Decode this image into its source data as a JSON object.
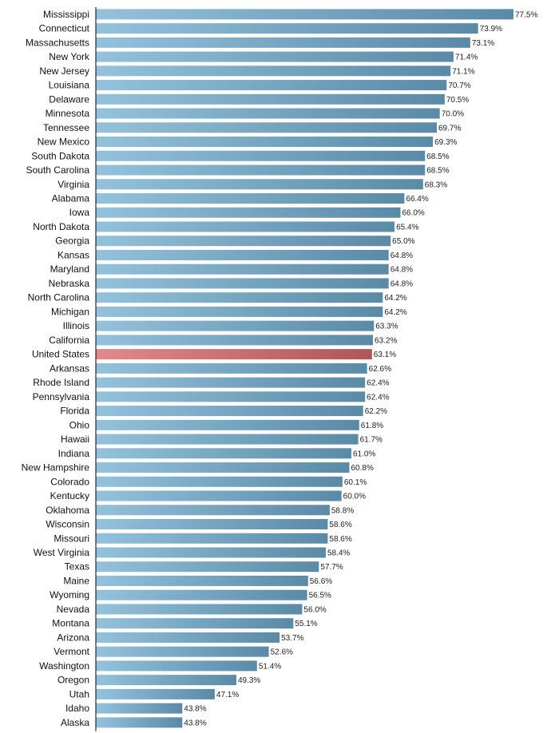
{
  "chart_data": {
    "type": "bar",
    "orientation": "horizontal",
    "categories": [
      "Mississippi",
      "Connecticut",
      "Massachusetts",
      "New York",
      "New Jersey",
      "Louisiana",
      "Delaware",
      "Minnesota",
      "Tennessee",
      "New Mexico",
      "South Dakota",
      "South Carolina",
      "Virginia",
      "Alabama",
      "Iowa",
      "North Dakota",
      "Georgia",
      "Kansas",
      "Maryland",
      "Nebraska",
      "North Carolina",
      "Michigan",
      "Illinois",
      "California",
      "United States",
      "Arkansas",
      "Rhode Island",
      "Pennsylvania",
      "Florida",
      "Ohio",
      "Hawaii",
      "Indiana",
      "New Hampshire",
      "Colorado",
      "Kentucky",
      "Oklahoma",
      "Wisconsin",
      "Missouri",
      "West Virginia",
      "Texas",
      "Maine",
      "Wyoming",
      "Nevada",
      "Montana",
      "Arizona",
      "Vermont",
      "Washington",
      "Oregon",
      "Utah",
      "Idaho",
      "Alaska"
    ],
    "values": [
      77.5,
      73.9,
      73.1,
      71.4,
      71.1,
      70.7,
      70.5,
      70.0,
      69.7,
      69.3,
      68.5,
      68.5,
      68.3,
      66.4,
      66.0,
      65.4,
      65.0,
      64.8,
      64.8,
      64.8,
      64.2,
      64.2,
      63.3,
      63.2,
      63.1,
      62.6,
      62.4,
      62.4,
      62.2,
      61.8,
      61.7,
      61.0,
      60.8,
      60.1,
      60.0,
      58.8,
      58.6,
      58.6,
      58.4,
      57.7,
      56.6,
      56.5,
      56.0,
      55.1,
      53.7,
      52.6,
      51.4,
      49.3,
      47.1,
      43.8,
      43.8
    ],
    "value_labels": [
      "77.5%",
      "73.9%",
      "73.1%",
      "71.4%",
      "71.1%",
      "70.7%",
      "70.5%",
      "70.0%",
      "69.7%",
      "69.3%",
      "68.5%",
      "68.5%",
      "68.3%",
      "66.4%",
      "66.0%",
      "65.4%",
      "65.0%",
      "64.8%",
      "64.8%",
      "64.8%",
      "64.2%",
      "64.2%",
      "63.3%",
      "63.2%",
      "63.1%",
      "62.6%",
      "62.4%",
      "62.4%",
      "62.2%",
      "61.8%",
      "61.7%",
      "61.0%",
      "60.8%",
      "60.1%",
      "60.0%",
      "58.8%",
      "58.6%",
      "58.6%",
      "58.4%",
      "57.7%",
      "56.6%",
      "56.5%",
      "56.0%",
      "55.1%",
      "53.7%",
      "52.6%",
      "51.4%",
      "49.3%",
      "47.1%",
      "43.8%",
      "43.8%"
    ],
    "xlim": [
      35,
      77.5
    ],
    "highlight_category": "United States",
    "grid": false,
    "colors": {
      "bar_light": "#94c2dc",
      "bar_dark": "#5a8aa6",
      "highlight_light": "#e08a8c",
      "highlight_dark": "#b0555a",
      "axis": "#000000"
    }
  }
}
